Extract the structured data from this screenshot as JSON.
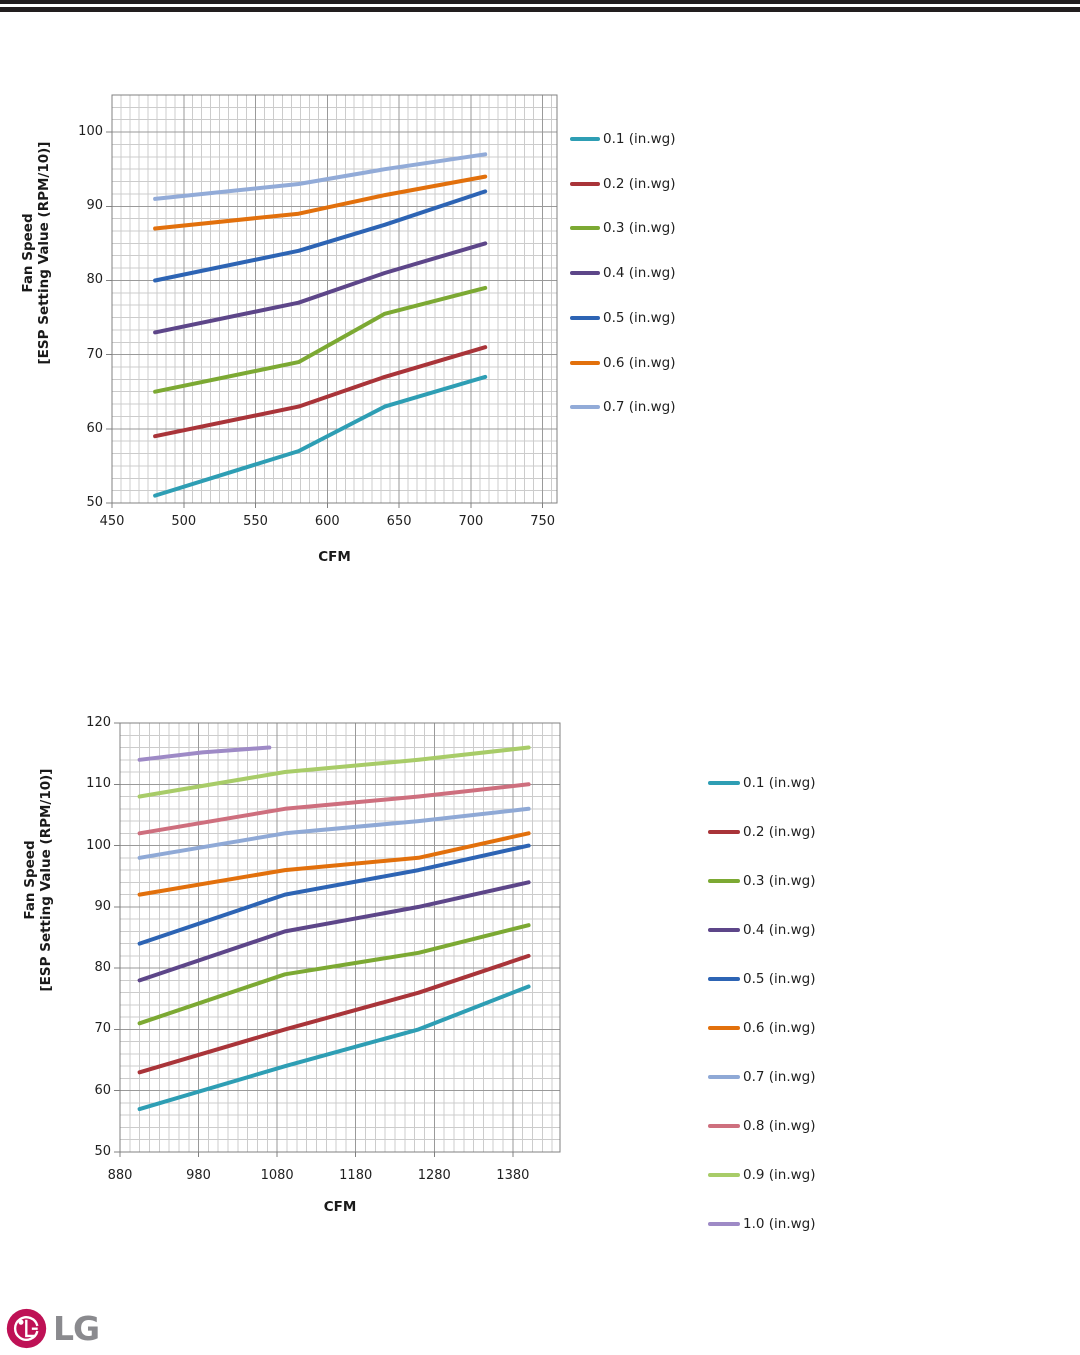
{
  "page_header": {
    "rule_color": "#221e1f"
  },
  "footer_logo": {
    "text": "LG",
    "text_color": "#8a8a8e",
    "symbol_color": "#be1155"
  },
  "chart_data": [
    {
      "type": "line",
      "title": "",
      "xlabel": "CFM",
      "ylabel": "Fan Speed [ESP Setting Value (RPM/10)]",
      "ylabel_line1": "Fan Speed",
      "ylabel_line2": "[ESP Setting Value (RPM/10)]",
      "x_ticks": [
        450,
        500,
        550,
        600,
        650,
        700,
        750
      ],
      "y_ticks": [
        50,
        60,
        70,
        80,
        90,
        100
      ],
      "x_range": [
        450,
        760
      ],
      "y_range": [
        50,
        105
      ],
      "grid": "minor+major",
      "legend_position": "right",
      "series": [
        {
          "name": "0.1 (in.wg)",
          "color": "#2e9eb4",
          "x": [
            480,
            580,
            640,
            710
          ],
          "y": [
            51,
            57,
            63,
            67
          ]
        },
        {
          "name": "0.2 (in.wg)",
          "color": "#a93439",
          "x": [
            480,
            580,
            640,
            710
          ],
          "y": [
            59,
            63,
            67,
            71
          ]
        },
        {
          "name": "0.3 (in.wg)",
          "color": "#7ca933",
          "x": [
            480,
            580,
            640,
            710
          ],
          "y": [
            65,
            69,
            75.5,
            79
          ]
        },
        {
          "name": "0.4 (in.wg)",
          "color": "#5d4689",
          "x": [
            480,
            580,
            640,
            710
          ],
          "y": [
            73,
            77,
            81,
            85
          ]
        },
        {
          "name": "0.5 (in.wg)",
          "color": "#2d64b4",
          "x": [
            480,
            580,
            640,
            710
          ],
          "y": [
            80,
            84,
            87.5,
            92
          ]
        },
        {
          "name": "0.6 (in.wg)",
          "color": "#e2700c",
          "x": [
            480,
            580,
            640,
            710
          ],
          "y": [
            87,
            89,
            91.5,
            94
          ]
        },
        {
          "name": "0.7 (in.wg)",
          "color": "#92abd8",
          "x": [
            480,
            580,
            640,
            710
          ],
          "y": [
            91,
            93,
            95,
            97
          ]
        }
      ]
    },
    {
      "type": "line",
      "title": "",
      "xlabel": "CFM",
      "ylabel": "Fan Speed [ESP Setting Value (RPM/10)]",
      "ylabel_line1": "Fan Speed",
      "ylabel_line2": "[ESP Setting Value (RPM/10)]",
      "x_ticks": [
        880,
        980,
        1080,
        1180,
        1280,
        1380
      ],
      "y_ticks": [
        50,
        60,
        70,
        80,
        90,
        100,
        110,
        120
      ],
      "x_range": [
        880,
        1440
      ],
      "y_range": [
        50,
        120
      ],
      "grid": "minor+major",
      "legend_position": "right",
      "series": [
        {
          "name": "0.1 (in.wg)",
          "color": "#2e9eb4",
          "x": [
            905,
            1090,
            1260,
            1400
          ],
          "y": [
            57,
            64,
            70,
            77
          ]
        },
        {
          "name": "0.2 (in.wg)",
          "color": "#a93439",
          "x": [
            905,
            1090,
            1260,
            1400
          ],
          "y": [
            63,
            70,
            76,
            82
          ]
        },
        {
          "name": "0.3 (in.wg)",
          "color": "#7ca933",
          "x": [
            905,
            1090,
            1260,
            1400
          ],
          "y": [
            71,
            79,
            82.5,
            87
          ]
        },
        {
          "name": "0.4 (in.wg)",
          "color": "#5d4689",
          "x": [
            905,
            1090,
            1260,
            1400
          ],
          "y": [
            78,
            86,
            90,
            94
          ]
        },
        {
          "name": "0.5 (in.wg)",
          "color": "#2d64b4",
          "x": [
            905,
            1090,
            1260,
            1400
          ],
          "y": [
            84,
            92,
            96,
            100
          ]
        },
        {
          "name": "0.6 (in.wg)",
          "color": "#e2700c",
          "x": [
            905,
            1090,
            1260,
            1400
          ],
          "y": [
            92,
            96,
            98,
            102
          ]
        },
        {
          "name": "0.7 (in.wg)",
          "color": "#8fa9d6",
          "x": [
            905,
            1090,
            1260,
            1400
          ],
          "y": [
            98,
            102,
            104,
            106
          ]
        },
        {
          "name": "0.8 (in.wg)",
          "color": "#ce6f7e",
          "x": [
            905,
            1090,
            1260,
            1400
          ],
          "y": [
            102,
            106,
            108,
            110
          ]
        },
        {
          "name": "0.9 (in.wg)",
          "color": "#a8cc68",
          "x": [
            905,
            1090,
            1260,
            1400
          ],
          "y": [
            108,
            112,
            114,
            116
          ]
        },
        {
          "name": "1.0 (in.wg)",
          "color": "#9e8ac6",
          "x": [
            905,
            985,
            1070
          ],
          "y": [
            114,
            115.2,
            116
          ]
        }
      ]
    }
  ]
}
